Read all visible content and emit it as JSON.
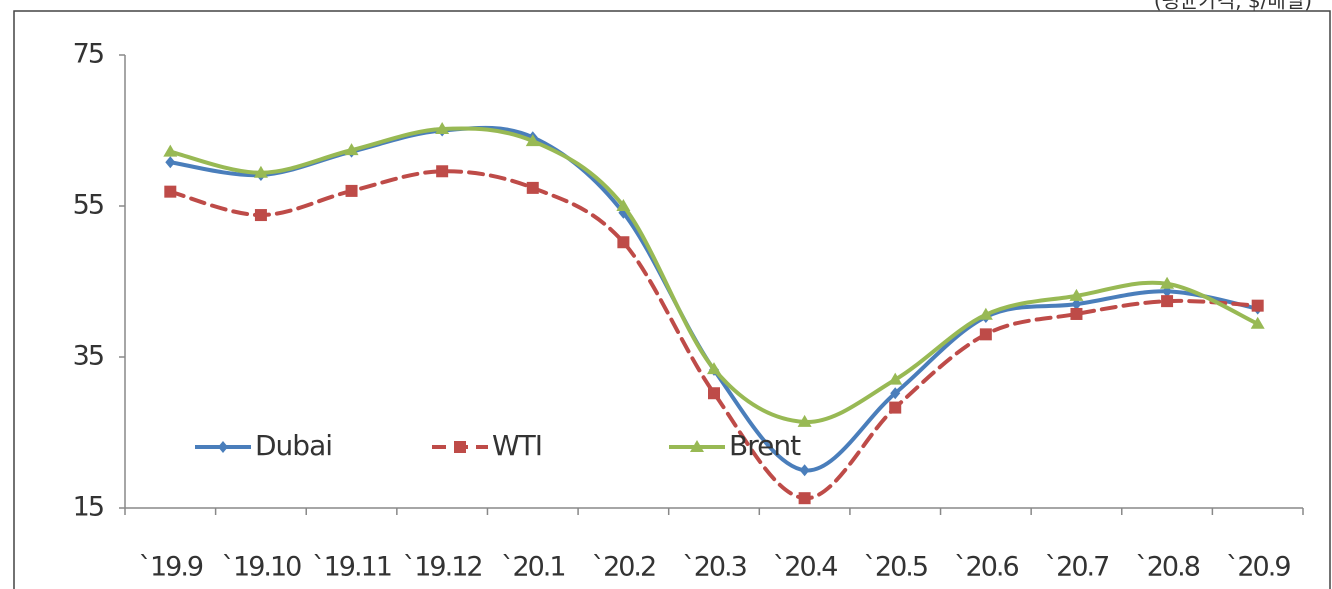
{
  "chart_data": {
    "type": "line",
    "subtitle": "(평균가격, $/배럴)",
    "categories": [
      "`19.9",
      "`19.10",
      "`19.11",
      "`19.12",
      "`20.1",
      "`20.2",
      "`20.3",
      "`20.4",
      "`20.5",
      "`20.6",
      "`20.7",
      "`20.8",
      "`20.9"
    ],
    "series": [
      {
        "name": "Dubai",
        "color": "#4a7ebb",
        "marker": "diamond",
        "dashed": false,
        "values": [
          60.8,
          59.1,
          62.2,
          65.0,
          64.1,
          54.1,
          33.3,
          20.0,
          30.2,
          40.3,
          42.0,
          43.7,
          41.4
        ]
      },
      {
        "name": "WTI",
        "color": "#be4b48",
        "marker": "square",
        "dashed": true,
        "values": [
          56.9,
          53.8,
          57.0,
          59.6,
          57.4,
          50.2,
          30.2,
          16.3,
          28.3,
          38.0,
          40.7,
          42.4,
          41.8
        ]
      },
      {
        "name": "Brent",
        "color": "#98b954",
        "marker": "triangle",
        "dashed": false,
        "values": [
          62.2,
          59.4,
          62.4,
          65.2,
          63.6,
          55.0,
          33.4,
          26.4,
          32.0,
          40.6,
          43.1,
          44.7,
          39.4
        ]
      }
    ],
    "ylim": [
      15,
      75
    ],
    "yticks": [
      15,
      35,
      55,
      75
    ],
    "grid": false,
    "smooth": true,
    "legend": "lower-left"
  }
}
